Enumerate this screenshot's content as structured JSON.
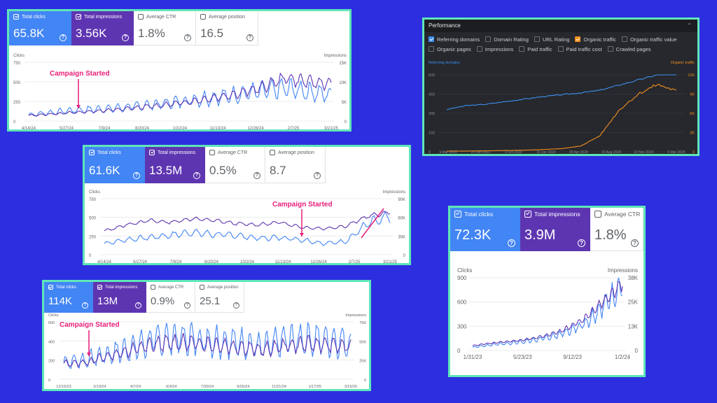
{
  "panel1": {
    "tiles": [
      {
        "label": "Total clicks",
        "value": "65.8K",
        "style": "blue",
        "checked": true
      },
      {
        "label": "Total impressions",
        "value": "3.56K",
        "style": "purple",
        "checked": true
      },
      {
        "label": "Average CTR",
        "value": "1.8%",
        "style": "grey",
        "checked": false
      },
      {
        "label": "Average position",
        "value": "16.5",
        "style": "grey",
        "checked": false
      }
    ],
    "left_axis_title": "Clicks",
    "right_axis_title": "Impressions",
    "left_ticks": [
      "750",
      "500",
      "250",
      "0"
    ],
    "right_ticks": [
      "15K",
      "10K",
      "5K",
      "0"
    ],
    "x_ticks": [
      "4/14/24",
      "5/27/24",
      "7/9/24",
      "8/20/24",
      "10/2/24",
      "11/13/24",
      "12/26/24",
      "2/7/25",
      "3/21/25"
    ],
    "annotation": "Campaign Started"
  },
  "panel2": {
    "tiles": [
      {
        "label": "Total clicks",
        "value": "61.6K",
        "style": "blue",
        "checked": true
      },
      {
        "label": "Total impressions",
        "value": "13.5M",
        "style": "purple",
        "checked": true
      },
      {
        "label": "Average CTR",
        "value": "0.5%",
        "style": "grey",
        "checked": false
      },
      {
        "label": "Average position",
        "value": "8.7",
        "style": "grey",
        "checked": false
      }
    ],
    "left_axis_title": "Clicks",
    "right_axis_title": "Impressions",
    "left_ticks": [
      "750",
      "500",
      "250",
      "0"
    ],
    "right_ticks": [
      "90K",
      "60K",
      "30K",
      "0"
    ],
    "x_ticks": [
      "4/14/24",
      "5/27/24",
      "7/9/24",
      "8/20/24",
      "10/2/24",
      "11/13/24",
      "12/26/24",
      "2/7/25",
      "3/21/25"
    ],
    "annotation": "Campaign Started"
  },
  "panel3": {
    "tiles": [
      {
        "label": "Total clicks",
        "value": "114K",
        "style": "blue",
        "checked": true
      },
      {
        "label": "Total impressions",
        "value": "13M",
        "style": "purple",
        "checked": true
      },
      {
        "label": "Average CTR",
        "value": "0.9%",
        "style": "grey",
        "checked": false
      },
      {
        "label": "Average position",
        "value": "25.1",
        "style": "grey",
        "checked": false
      }
    ],
    "left_axis_title": "Clicks",
    "right_axis_title": "Impressions",
    "left_ticks": [
      "600",
      "400",
      "200",
      "0"
    ],
    "right_ticks": [
      "75K",
      "50K",
      "25K",
      "0"
    ],
    "x_ticks": [
      "12/15/23",
      "2/10/24",
      "4/7/24",
      "6/3/24",
      "7/30/24",
      "9/25/24",
      "11/21/24",
      "1/17/25",
      "3/15/25"
    ],
    "annotation": "Campaign Started"
  },
  "panel4": {
    "tiles": [
      {
        "label": "Total clicks",
        "value": "72.3K",
        "style": "blue",
        "checked": true
      },
      {
        "label": "Total impressions",
        "value": "3.9M",
        "style": "purple",
        "checked": true
      },
      {
        "label": "Average CTR",
        "value": "1.8%",
        "style": "grey",
        "checked": false
      }
    ],
    "left_axis_title": "Clicks",
    "right_axis_title": "Impressions",
    "left_ticks": [
      "900",
      "600",
      "300",
      "0"
    ],
    "right_ticks": [
      "38K",
      "25K",
      "13K",
      "0"
    ],
    "x_ticks": [
      "1/31/23",
      "5/23/23",
      "9/12/23",
      "1/2/24"
    ]
  },
  "ahrefs": {
    "title": "Performance",
    "options_row1": [
      {
        "label": "Referring domains",
        "state": "blue"
      },
      {
        "label": "Domain Rating",
        "state": "off"
      },
      {
        "label": "URL Rating",
        "state": "off"
      },
      {
        "label": "Organic traffic",
        "state": "orange"
      },
      {
        "label": "Organic traffic value",
        "state": "off"
      }
    ],
    "options_row2": [
      {
        "label": "Organic pages",
        "state": "off"
      },
      {
        "label": "Impressions",
        "state": "off"
      },
      {
        "label": "Paid traffic",
        "state": "off"
      },
      {
        "label": "Paid traffic cost",
        "state": "off"
      },
      {
        "label": "Crawled pages",
        "state": "off"
      }
    ],
    "left_series_label": "Referring domains",
    "right_series_label": "Organic traffic",
    "left_ticks": [
      "600",
      "450",
      "300",
      "150",
      "0"
    ],
    "right_ticks": [
      "12K",
      "9K",
      "6K",
      "3K",
      "0"
    ],
    "x_ticks": [
      "9 Mar 2023",
      "21 Jun 2023",
      "3 Oct 2023",
      "15 Jan 2024",
      "28 Apr 2024",
      "10 Aug 2024",
      "22 Nov 2024",
      "6 Mar 2025"
    ]
  },
  "colors": {
    "background": "#2c2ee0",
    "border": "#5fe6b8",
    "clicks": "#4285f4",
    "impressions": "#5e35b1",
    "annotation": "#e91e7a",
    "ahrefs_blue": "#3d8ef0",
    "ahrefs_orange": "#f48e1c"
  },
  "chart_data": [
    {
      "type": "line",
      "panel": "panel1",
      "left_axis": "Clicks",
      "right_axis": "Impressions",
      "ylim_left": [
        0,
        750
      ],
      "ylim_right": [
        0,
        15000
      ],
      "series": [
        {
          "name": "Clicks",
          "values": [
            80,
            110,
            140,
            150,
            170,
            200,
            230,
            270,
            300,
            340,
            380,
            420,
            380,
            330
          ]
        },
        {
          "name": "Impressions",
          "values": [
            1400,
            1800,
            2200,
            2600,
            3000,
            3600,
            4200,
            5000,
            6000,
            7000,
            8500,
            11000,
            10000,
            9500
          ]
        }
      ]
    },
    {
      "type": "line",
      "panel": "panel2",
      "left_axis": "Clicks",
      "right_axis": "Impressions",
      "ylim_left": [
        0,
        750
      ],
      "ylim_right": [
        0,
        90000
      ],
      "series": [
        {
          "name": "Clicks",
          "values": [
            150,
            200,
            230,
            260,
            300,
            270,
            260,
            220,
            230,
            200,
            150,
            180,
            420,
            500
          ]
        },
        {
          "name": "Impressions",
          "values": [
            38000,
            48000,
            55000,
            52000,
            58000,
            55000,
            50000,
            48000,
            52000,
            44000,
            42000,
            46000,
            62000,
            68000
          ]
        }
      ]
    },
    {
      "type": "line",
      "panel": "panel3",
      "left_axis": "Clicks",
      "right_axis": "Impressions",
      "ylim_left": [
        0,
        600
      ],
      "ylim_right": [
        0,
        75000
      ],
      "series": [
        {
          "name": "Clicks",
          "values": [
            180,
            200,
            260,
            320,
            400,
            430,
            420,
            400,
            380,
            330,
            400,
            420,
            410,
            380
          ]
        },
        {
          "name": "Impressions",
          "values": [
            20000,
            22000,
            30000,
            38000,
            45000,
            48000,
            47000,
            45000,
            42000,
            38000,
            44000,
            46000,
            45000,
            42000
          ]
        }
      ]
    },
    {
      "type": "line",
      "panel": "panel4",
      "left_axis": "Clicks",
      "right_axis": "Impressions",
      "ylim_left": [
        0,
        900
      ],
      "ylim_right": [
        0,
        38000
      ],
      "series": [
        {
          "name": "Clicks",
          "values": [
            40,
            60,
            80,
            90,
            110,
            130,
            160,
            200,
            260,
            340,
            480,
            650,
            800
          ]
        },
        {
          "name": "Impressions",
          "values": [
            2500,
            3500,
            4200,
            4800,
            5500,
            6500,
            8000,
            10000,
            13000,
            17000,
            23000,
            29000,
            35000
          ]
        }
      ]
    },
    {
      "type": "line",
      "panel": "ahrefs",
      "ylim_left": [
        0,
        600
      ],
      "ylim_right": [
        0,
        12000
      ],
      "series": [
        {
          "name": "Referring domains",
          "values": [
            330,
            360,
            370,
            390,
            410,
            430,
            445,
            460,
            480,
            520,
            560,
            600,
            640
          ]
        },
        {
          "name": "Organic traffic",
          "values": [
            100,
            120,
            150,
            200,
            250,
            350,
            500,
            900,
            2500,
            6500,
            9000,
            10500,
            9500
          ]
        }
      ]
    }
  ]
}
